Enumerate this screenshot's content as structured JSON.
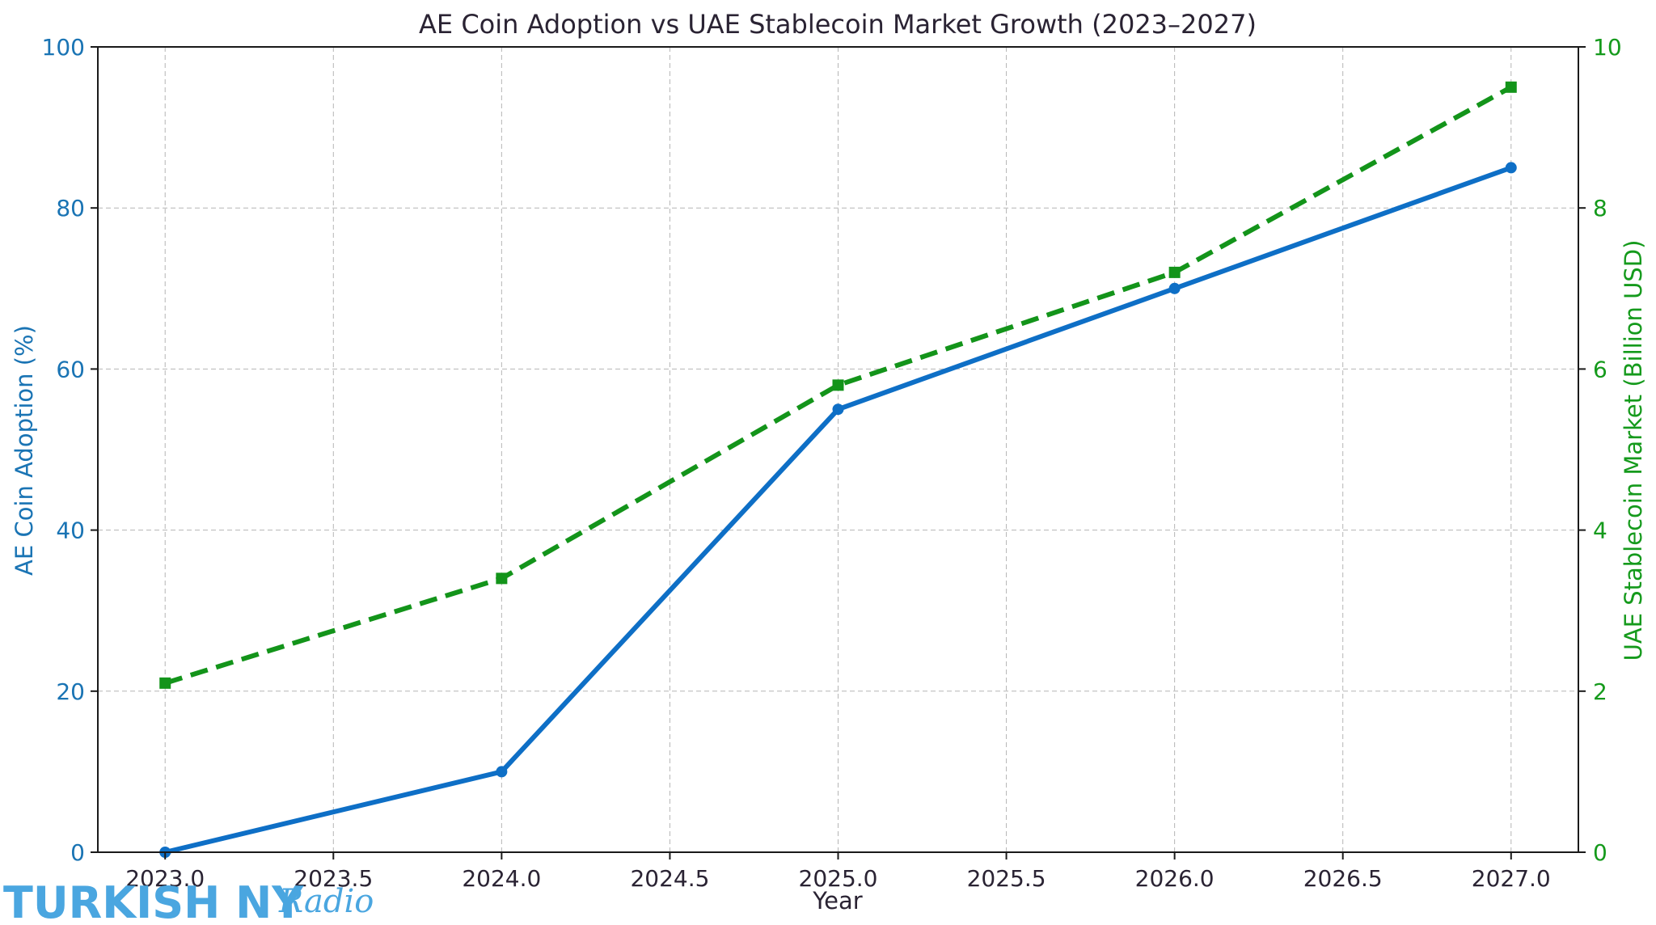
{
  "chart_data": {
    "type": "line",
    "title": "AE Coin Adoption vs UAE Stablecoin Market Growth (2023–2027)",
    "xlabel": "Year",
    "ylabel_left": "AE Coin Adoption (%)",
    "ylabel_right": "UAE Stablecoin Market (Billion USD)",
    "x": [
      2023,
      2024,
      2025,
      2026,
      2027
    ],
    "xlim": [
      2022.8,
      2027.2
    ],
    "ylim_left": [
      0,
      100
    ],
    "ylim_right": [
      0,
      10
    ],
    "xticks": [
      2023.0,
      2023.5,
      2024.0,
      2024.5,
      2025.0,
      2025.5,
      2026.0,
      2026.5,
      2027.0
    ],
    "xtick_labels": [
      "2023.0",
      "2023.5",
      "2024.0",
      "2024.5",
      "2025.0",
      "2025.5",
      "2026.0",
      "2026.5",
      "2027.0"
    ],
    "yticks_left": [
      0,
      20,
      40,
      60,
      80,
      100
    ],
    "ytick_labels_left": [
      "0",
      "20",
      "40",
      "60",
      "80",
      "100"
    ],
    "yticks_right": [
      0,
      2,
      4,
      6,
      8,
      10
    ],
    "ytick_labels_right": [
      "0",
      "2",
      "4",
      "6",
      "8",
      "10"
    ],
    "grid": true,
    "series": [
      {
        "axis": "left",
        "style": "solid",
        "marker": "circle",
        "color": "#0e6fc6",
        "values": [
          0,
          10,
          55,
          70,
          85
        ]
      },
      {
        "axis": "right",
        "style": "dashed",
        "marker": "square",
        "color": "#13941a",
        "values": [
          2.1,
          3.4,
          5.8,
          7.2,
          9.5
        ]
      }
    ],
    "colors": {
      "left_axis": "#1a74b4",
      "right_axis": "#159a1c",
      "text": "#2a2333",
      "grid": "#b5b5b5",
      "frame": "#1a1a1a"
    }
  },
  "watermark": {
    "text_main": "TURKISH NY",
    "text_script": "Radio",
    "color": "#4aa6e0"
  }
}
